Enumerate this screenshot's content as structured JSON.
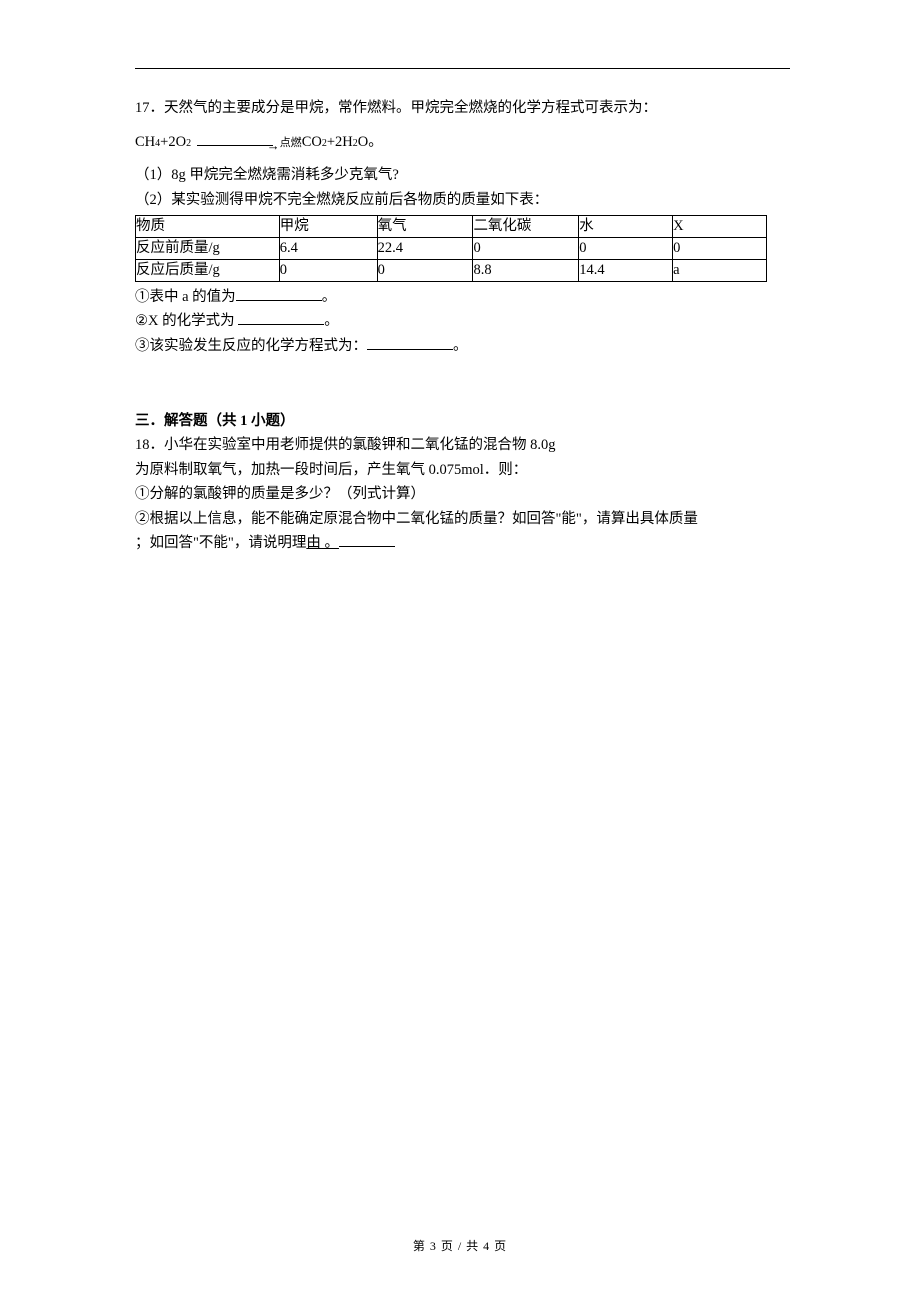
{
  "q17": {
    "number": "17．",
    "intro": "天然气的主要成分是甲烷，常作燃料。甲烷完全燃烧的化学方程式可表示为：",
    "formula_prefix": "CH",
    "formula_sub1": "4",
    "formula_plus1": "+2O",
    "formula_sub2": "2",
    "arrow_label": "点燃",
    "formula_after": " CO",
    "formula_sub3": "2",
    "formula_plus2": "+2H",
    "formula_sub4": "2",
    "formula_end": "O。",
    "part1": "（1）8g 甲烷完全燃烧需消耗多少克氧气?",
    "part2": "（2）某实验测得甲烷不完全燃烧反应前后各物质的质量如下表：",
    "table": {
      "headers": [
        "物质",
        "甲烷",
        "氧气",
        "二氧化碳",
        "水",
        "X"
      ],
      "row1_label": "反应前质量/g",
      "row1": [
        "6.4",
        "22.4",
        "0",
        "0",
        "0"
      ],
      "row2_label": "反应后质量/g",
      "row2": [
        "0",
        "0",
        "8.8",
        "14.4",
        "a"
      ]
    },
    "sub1_before": "①表中 a 的值为",
    "sub1_after": "。",
    "sub2_before": "②X 的化学式为 ",
    "sub2_after": "。",
    "sub3_before": "③该实验发生反应的化学方程式为：",
    "sub3_after": "。"
  },
  "section3": {
    "heading": "三．解答题（共 1 小题）"
  },
  "q18": {
    "number": "18．",
    "line1": "小华在实验室中用老师提供的氯酸钾和二氧化锰的混合物 8.0g",
    "line2": "为原料制取氧气，加热一段时间后，产生氧气 0.075mol．则：",
    "line3": "①分解的氯酸钾的质量是多少？（列式计算）",
    "line4a": "②根据以上信息，能不能确定原混合物中二氧化锰的质量？如回答\"能\"，请算出具体质量",
    "line5a": "；如回答\"不能\"，请说明理",
    "line5b": "由 。"
  },
  "footer": {
    "text": "第 3 页 / 共 4 页"
  },
  "colors": {
    "text": "#000000",
    "background": "#ffffff",
    "rule": "#000000"
  },
  "typography": {
    "body_fontsize": 14.5,
    "sub_fontsize": 10,
    "footer_fontsize": 12,
    "font_family": "SimSun"
  }
}
